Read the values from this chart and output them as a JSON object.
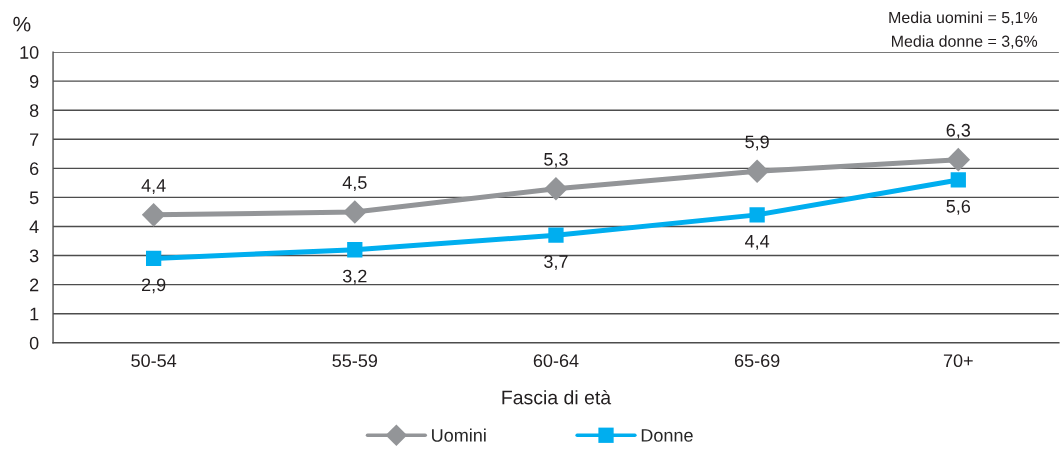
{
  "chart_data": {
    "type": "line",
    "categories": [
      "50-54",
      "55-59",
      "60-64",
      "65-69",
      "70+"
    ],
    "series": [
      {
        "name": "Uomini",
        "color": "#939598",
        "marker": "diamond",
        "values": [
          4.4,
          4.5,
          5.3,
          5.9,
          6.3
        ],
        "value_labels": [
          "4,4",
          "4,5",
          "5,3",
          "5,9",
          "6,3"
        ]
      },
      {
        "name": "Donne",
        "color": "#00aeef",
        "marker": "square",
        "values": [
          2.9,
          3.2,
          3.7,
          4.4,
          5.6
        ],
        "value_labels": [
          "2,9",
          "3,2",
          "3,7",
          "4,4",
          "5,6"
        ]
      }
    ],
    "xlabel": "Fascia di età",
    "ylabel": "%",
    "annotations": [
      "Media uomini = 5,1%",
      "Media donne = 3,6%"
    ],
    "ylim": [
      0,
      10
    ],
    "yticks": [
      0,
      1,
      2,
      3,
      4,
      5,
      6,
      7,
      8,
      9,
      10
    ],
    "grid": "y",
    "legend": "bottom",
    "line_style": "solid"
  }
}
